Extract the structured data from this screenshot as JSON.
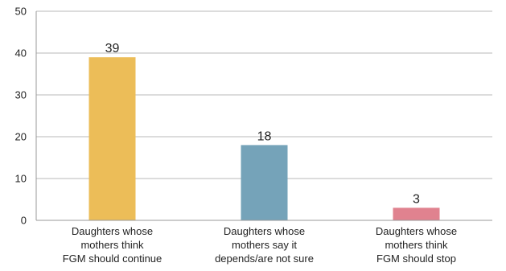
{
  "chart_data": {
    "type": "bar",
    "categories": [
      [
        "Daughters whose",
        "mothers think",
        "FGM should continue"
      ],
      [
        "Daughters whose",
        "mothers say it",
        "depends/are not sure"
      ],
      [
        "Daughters whose",
        "mothers think",
        "FGM should stop"
      ]
    ],
    "values": [
      39,
      18,
      3
    ],
    "data_labels": [
      "39",
      "18",
      "3"
    ],
    "colors": [
      "#ecbd58",
      "#75a3b9",
      "#e0828f"
    ],
    "ylim": [
      0,
      50
    ],
    "yticks": [
      0,
      10,
      20,
      30,
      40,
      50
    ],
    "grid": true,
    "title": "",
    "xlabel": "",
    "ylabel": ""
  }
}
